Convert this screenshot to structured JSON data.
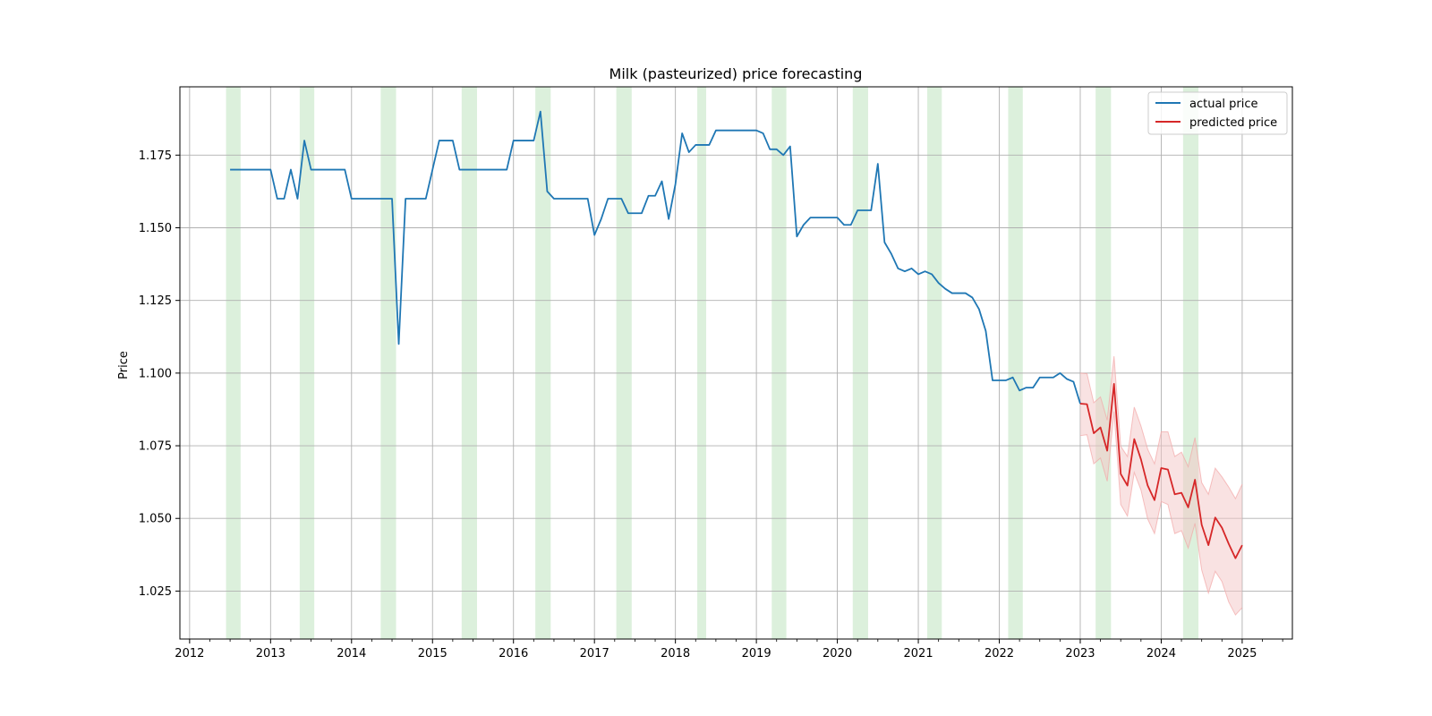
{
  "chart_data": {
    "type": "line",
    "title": "Milk (pasteurized) price forecasting",
    "xlabel": "",
    "ylabel": "Price",
    "xlim": [
      2011.88,
      2025.62
    ],
    "ylim": [
      1.0085,
      1.1985
    ],
    "grid": true,
    "legend_position": "top-right",
    "x_ticks": [
      "2012",
      "2013",
      "2014",
      "2015",
      "2016",
      "2017",
      "2018",
      "2019",
      "2020",
      "2021",
      "2022",
      "2023",
      "2024",
      "2025"
    ],
    "y_ticks": [
      "1.025",
      "1.050",
      "1.075",
      "1.100",
      "1.125",
      "1.150",
      "1.175"
    ],
    "colors": {
      "actual": "#1f77b4",
      "predicted": "#d62728",
      "interval": "#f4c6c6",
      "shade": "#c9e8c9",
      "grid": "#b0b0b0"
    },
    "shaded_spans": [
      [
        2012.45,
        2012.63
      ],
      [
        2013.36,
        2013.54
      ],
      [
        2014.36,
        2014.55
      ],
      [
        2015.36,
        2015.55
      ],
      [
        2016.27,
        2016.46
      ],
      [
        2017.27,
        2017.46
      ],
      [
        2018.27,
        2018.38
      ],
      [
        2019.19,
        2019.37
      ],
      [
        2020.19,
        2020.38
      ],
      [
        2021.11,
        2021.29
      ],
      [
        2022.11,
        2022.29
      ],
      [
        2023.19,
        2023.38
      ],
      [
        2024.27,
        2024.46
      ]
    ],
    "series": [
      {
        "name": "actual price",
        "x": [
          2012.5,
          2012.583,
          2012.667,
          2012.75,
          2012.833,
          2012.917,
          2013.0,
          2013.083,
          2013.167,
          2013.25,
          2013.333,
          2013.417,
          2013.5,
          2013.583,
          2013.667,
          2013.75,
          2013.833,
          2013.917,
          2014.0,
          2014.083,
          2014.167,
          2014.25,
          2014.333,
          2014.417,
          2014.5,
          2014.583,
          2014.667,
          2014.75,
          2014.833,
          2014.917,
          2015.0,
          2015.083,
          2015.167,
          2015.25,
          2015.333,
          2015.417,
          2015.5,
          2015.583,
          2015.667,
          2015.75,
          2015.833,
          2015.917,
          2016.0,
          2016.083,
          2016.167,
          2016.25,
          2016.333,
          2016.417,
          2016.5,
          2016.583,
          2016.667,
          2016.75,
          2016.833,
          2016.917,
          2017.0,
          2017.083,
          2017.167,
          2017.25,
          2017.333,
          2017.417,
          2017.5,
          2017.583,
          2017.667,
          2017.75,
          2017.833,
          2017.917,
          2018.0,
          2018.083,
          2018.167,
          2018.25,
          2018.333,
          2018.417,
          2018.5,
          2018.583,
          2018.667,
          2018.75,
          2018.833,
          2018.917,
          2019.0,
          2019.083,
          2019.167,
          2019.25,
          2019.333,
          2019.417,
          2019.5,
          2019.583,
          2019.667,
          2019.75,
          2019.833,
          2019.917,
          2020.0,
          2020.083,
          2020.167,
          2020.25,
          2020.333,
          2020.417,
          2020.5,
          2020.583,
          2020.667,
          2020.75,
          2020.833,
          2020.917,
          2021.0,
          2021.083,
          2021.167,
          2021.25,
          2021.333,
          2021.417,
          2021.5,
          2021.583,
          2021.667,
          2021.75,
          2021.833,
          2021.917,
          2022.0,
          2022.083,
          2022.167,
          2022.25,
          2022.333,
          2022.417,
          2022.5,
          2022.583,
          2022.667,
          2022.75,
          2022.833,
          2022.917,
          2023.0
        ],
        "values": [
          1.17,
          1.17,
          1.17,
          1.17,
          1.17,
          1.17,
          1.17,
          1.16,
          1.16,
          1.17,
          1.16,
          1.18,
          1.17,
          1.17,
          1.17,
          1.17,
          1.17,
          1.17,
          1.16,
          1.16,
          1.16,
          1.16,
          1.16,
          1.16,
          1.16,
          1.11,
          1.16,
          1.16,
          1.16,
          1.16,
          1.17,
          1.18,
          1.18,
          1.18,
          1.17,
          1.17,
          1.17,
          1.17,
          1.17,
          1.17,
          1.17,
          1.17,
          1.18,
          1.18,
          1.18,
          1.18,
          1.19,
          1.1625,
          1.16,
          1.16,
          1.16,
          1.16,
          1.16,
          1.16,
          1.1475,
          1.153,
          1.16,
          1.16,
          1.16,
          1.155,
          1.155,
          1.155,
          1.161,
          1.161,
          1.166,
          1.153,
          1.165,
          1.1825,
          1.176,
          1.1785,
          1.1785,
          1.1785,
          1.1835,
          1.1835,
          1.1835,
          1.1835,
          1.1835,
          1.1835,
          1.1835,
          1.1825,
          1.177,
          1.177,
          1.175,
          1.178,
          1.147,
          1.151,
          1.1535,
          1.1535,
          1.1535,
          1.1535,
          1.1535,
          1.151,
          1.151,
          1.156,
          1.156,
          1.156,
          1.172,
          1.145,
          1.141,
          1.136,
          1.135,
          1.136,
          1.134,
          1.135,
          1.134,
          1.131,
          1.129,
          1.1275,
          1.1275,
          1.1275,
          1.126,
          1.122,
          1.1145,
          1.0975,
          1.0975,
          1.0975,
          1.0985,
          1.094,
          1.095,
          1.095,
          1.0985,
          1.0985,
          1.0985,
          1.1,
          1.098,
          1.097,
          1.0895
        ]
      },
      {
        "name": "predicted price",
        "x": [
          2023.0,
          2023.083,
          2023.167,
          2023.25,
          2023.333,
          2023.417,
          2023.5,
          2023.583,
          2023.667,
          2023.75,
          2023.833,
          2023.917,
          2024.0,
          2024.083,
          2024.167,
          2024.25,
          2024.333,
          2024.417,
          2024.5,
          2024.583,
          2024.667,
          2024.75,
          2024.833,
          2024.917,
          2025.0
        ],
        "values": [
          1.0895,
          1.0893,
          1.0793,
          1.0813,
          1.0733,
          1.0963,
          1.0653,
          1.0613,
          1.0773,
          1.0703,
          1.0613,
          1.0563,
          1.0673,
          1.0668,
          1.0583,
          1.0588,
          1.0538,
          1.0633,
          1.0478,
          1.0408,
          1.0503,
          1.0468,
          1.0413,
          1.0363,
          1.0408
        ],
        "upper": [
          1.1,
          1.0998,
          1.0898,
          1.0918,
          1.0838,
          1.1058,
          1.0748,
          1.0713,
          1.0883,
          1.0818,
          1.0738,
          1.0688,
          1.0798,
          1.0798,
          1.0713,
          1.0728,
          1.0678,
          1.0778,
          1.0623,
          1.0583,
          1.0673,
          1.0643,
          1.0608,
          1.0568,
          1.0618
        ],
        "lower": [
          1.0785,
          1.0788,
          1.0688,
          1.0708,
          1.0628,
          1.0868,
          1.0548,
          1.0508,
          1.0658,
          1.0598,
          1.0498,
          1.0448,
          1.0558,
          1.0548,
          1.0448,
          1.0458,
          1.0398,
          1.0483,
          1.0323,
          1.0243,
          1.0318,
          1.0283,
          1.0213,
          1.0168,
          1.0193
        ]
      }
    ]
  }
}
